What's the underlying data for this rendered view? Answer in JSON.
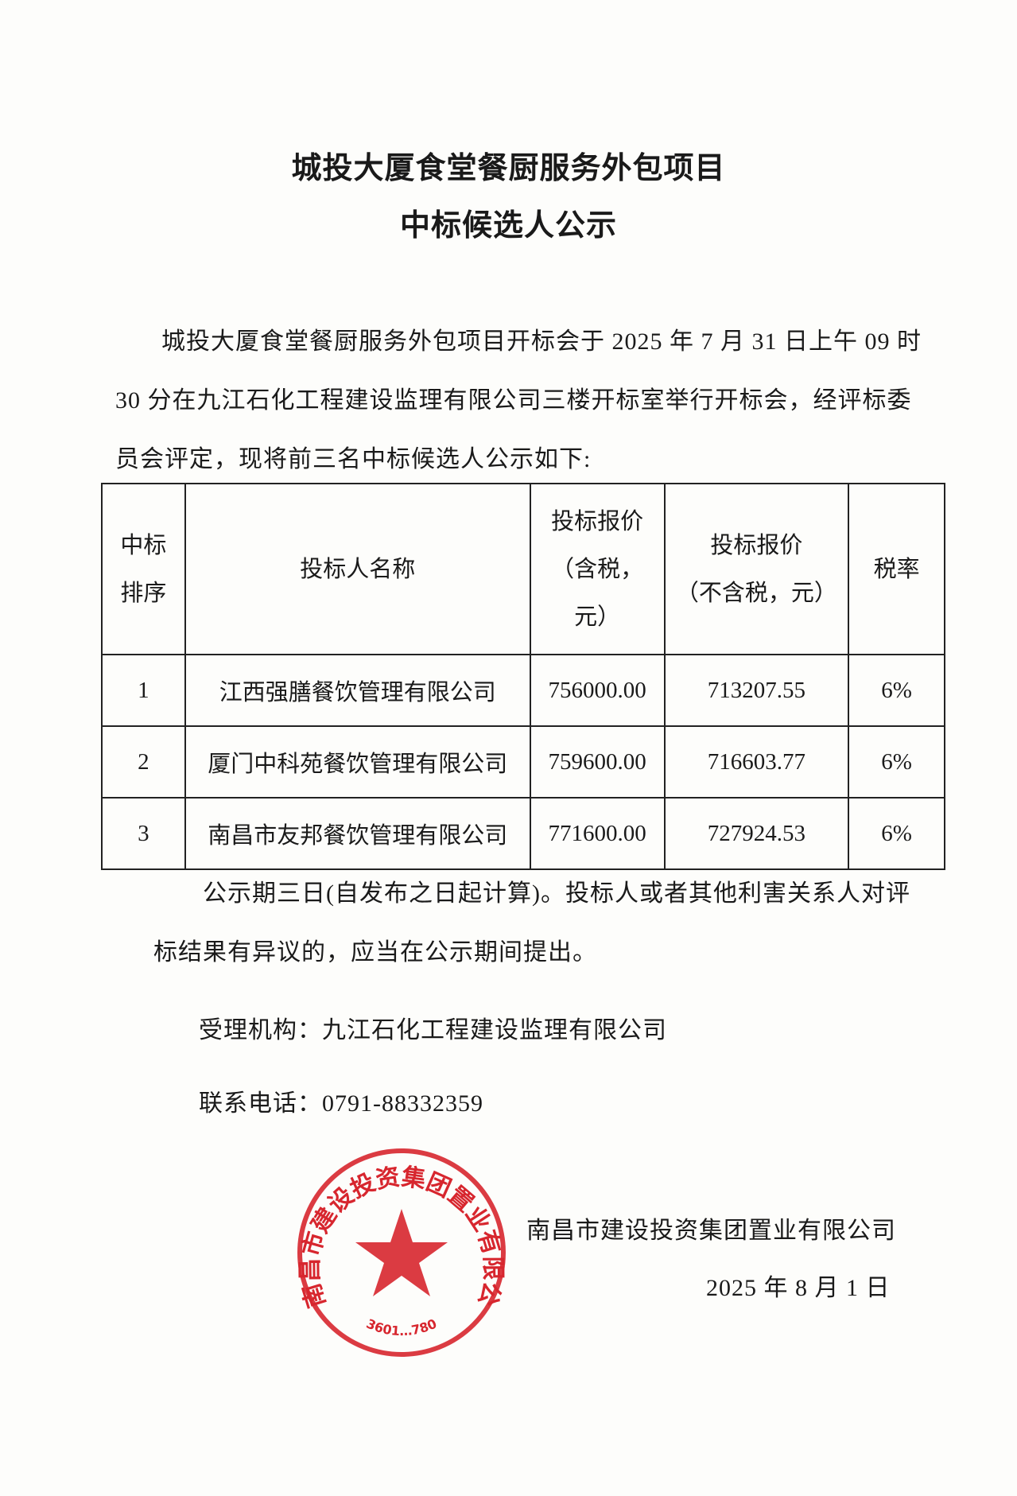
{
  "title": {
    "line1": "城投大厦食堂餐厨服务外包项目",
    "line2": "中标候选人公示"
  },
  "intro": {
    "line1": "城投大厦食堂餐厨服务外包项目开标会于 2025 年 7 月 31 日上午 09 时",
    "line2": "30 分在九江石化工程建设监理有限公司三楼开标室举行开标会，经评标委",
    "line3": "员会评定，现将前三名中标候选人公示如下:"
  },
  "table": {
    "headers": {
      "rank_1": "中标",
      "rank_2": "排序",
      "name": "投标人名称",
      "with_tax_1": "投标报价",
      "with_tax_2": "（含税，",
      "with_tax_3": "元）",
      "without_tax_1": "投标报价",
      "without_tax_2": "（不含税，元）",
      "tax_rate": "税率"
    },
    "rows": [
      {
        "rank": "1",
        "name": "江西强膳餐饮管理有限公司",
        "with_tax": "756000.00",
        "without_tax": "713207.55",
        "rate": "6%"
      },
      {
        "rank": "2",
        "name": "厦门中科苑餐饮管理有限公司",
        "with_tax": "759600.00",
        "without_tax": "716603.77",
        "rate": "6%"
      },
      {
        "rank": "3",
        "name": "南昌市友邦餐饮管理有限公司",
        "with_tax": "771600.00",
        "without_tax": "727924.53",
        "rate": "6%"
      }
    ]
  },
  "notice": {
    "line1": "公示期三日(自发布之日起计算)。投标人或者其他利害关系人对评",
    "line2": "标结果有异议的，应当在公示期间提出。"
  },
  "agency": "受理机构：九江石化工程建设监理有限公司",
  "phone": "联系电话：0791-88332359",
  "signature": {
    "company": "南昌市建设投资集团置业有限公司",
    "date": "2025 年 8 月 1 日"
  },
  "stamp": {
    "text": "南昌市建设投资集团置业有限公司",
    "code": "3601…780",
    "color": "#d7262e"
  }
}
